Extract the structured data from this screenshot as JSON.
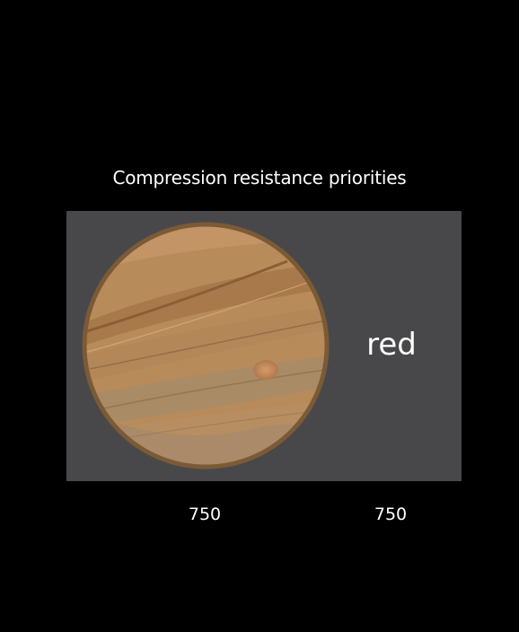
{
  "header": {
    "title": "Compression resistance priorities"
  },
  "stack": {
    "image_icon": "jupiter-planet-icon",
    "label": "red"
  },
  "priorities": {
    "image": "750",
    "label": "750"
  },
  "colors": {
    "background": "#000000",
    "stack_background": "#48484a",
    "planet_base": "#b88b5a",
    "planet_rim": "#7b5a36",
    "text": "#ffffff"
  }
}
